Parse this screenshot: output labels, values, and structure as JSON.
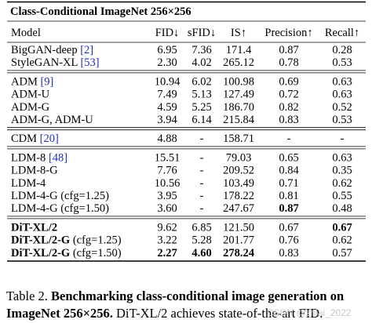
{
  "table": {
    "title": "Class-Conditional ImageNet 256×256",
    "headers": [
      "Model",
      "FID↓",
      "sFID↓",
      "IS↑",
      "Precision↑",
      "Recall↑"
    ],
    "groups": [
      {
        "rows": [
          {
            "model": "BigGAN-deep",
            "cite": "[2]",
            "values": [
              "6.95",
              "7.36",
              "171.4",
              "0.87",
              "0.28"
            ],
            "bold_model": false,
            "bold_cells": []
          },
          {
            "model": "StyleGAN-XL",
            "cite": "[53]",
            "values": [
              "2.30",
              "4.02",
              "265.12",
              "0.78",
              "0.53"
            ],
            "bold_model": false,
            "bold_cells": []
          }
        ]
      },
      {
        "rows": [
          {
            "model": "ADM",
            "cite": "[9]",
            "values": [
              "10.94",
              "6.02",
              "100.98",
              "0.69",
              "0.63"
            ],
            "bold_model": false,
            "bold_cells": []
          },
          {
            "model": "ADM-U",
            "cite": "",
            "values": [
              "7.49",
              "5.13",
              "127.49",
              "0.72",
              "0.63"
            ],
            "bold_model": false,
            "bold_cells": []
          },
          {
            "model": "ADM-G",
            "cite": "",
            "values": [
              "4.59",
              "5.25",
              "186.70",
              "0.82",
              "0.52"
            ],
            "bold_model": false,
            "bold_cells": []
          },
          {
            "model": "ADM-G, ADM-U",
            "cite": "",
            "values": [
              "3.94",
              "6.14",
              "215.84",
              "0.83",
              "0.53"
            ],
            "bold_model": false,
            "bold_cells": []
          }
        ]
      },
      {
        "rows": [
          {
            "model": "CDM",
            "cite": "[20]",
            "values": [
              "4.88",
              "-",
              "158.71",
              "-",
              "-"
            ],
            "bold_model": false,
            "bold_cells": []
          }
        ]
      },
      {
        "rows": [
          {
            "model": "LDM-8",
            "cite": "[48]",
            "values": [
              "15.51",
              "-",
              "79.03",
              "0.65",
              "0.63"
            ],
            "bold_model": false,
            "bold_cells": []
          },
          {
            "model": "LDM-8-G",
            "cite": "",
            "values": [
              "7.76",
              "-",
              "209.52",
              "0.84",
              "0.35"
            ],
            "bold_model": false,
            "bold_cells": []
          },
          {
            "model": "LDM-4",
            "cite": "",
            "values": [
              "10.56",
              "-",
              "103.49",
              "0.71",
              "0.62"
            ],
            "bold_model": false,
            "bold_cells": []
          },
          {
            "model": "LDM-4-G (cfg=1.25)",
            "cite": "",
            "values": [
              "3.95",
              "-",
              "178.22",
              "0.81",
              "0.55"
            ],
            "bold_model": false,
            "bold_cells": []
          },
          {
            "model": "LDM-4-G (cfg=1.50)",
            "cite": "",
            "values": [
              "3.60",
              "-",
              "247.67",
              "0.87",
              "0.48"
            ],
            "bold_model": false,
            "bold_cells": [
              3
            ]
          }
        ]
      },
      {
        "rows": [
          {
            "model": "DiT-XL/2",
            "cite": "",
            "values": [
              "9.62",
              "6.85",
              "121.50",
              "0.67",
              "0.67"
            ],
            "bold_model": true,
            "bold_cells": [
              4
            ]
          },
          {
            "model": "DiT-XL/2-G",
            "suffix": " (cfg=1.25)",
            "cite": "",
            "values": [
              "3.22",
              "5.28",
              "201.77",
              "0.76",
              "0.62"
            ],
            "bold_model": true,
            "bold_cells": []
          },
          {
            "model": "DiT-XL/2-G",
            "suffix": " (cfg=1.50)",
            "cite": "",
            "values": [
              "2.27",
              "4.60",
              "278.24",
              "0.83",
              "0.57"
            ],
            "bold_model": true,
            "bold_cells": [
              0,
              1,
              2
            ]
          }
        ]
      }
    ]
  },
  "caption": {
    "prefix": "Table 2. ",
    "bold": "Benchmarking class-conditional image generation on ImageNet 256×256.",
    "rest": " DiT-XL/2 achieves state-of-the-art FID."
  },
  "watermark": "CSDN @zhiai_2022",
  "colors": {
    "cite": "#1f2fb8",
    "rule": "#000000",
    "text": "#000000"
  }
}
